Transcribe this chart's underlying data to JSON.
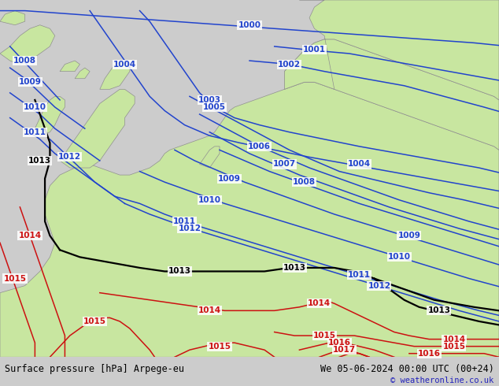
{
  "title_left": "Surface pressure [hPa] Arpege-eu",
  "title_right": "We 05-06-2024 00:00 UTC (00+24)",
  "credit": "© weatheronline.co.uk",
  "sea_color": "#d8d8d8",
  "land_color": "#c8e6a0",
  "coast_color": "#909090",
  "blue_color": "#2244cc",
  "black_color": "#000000",
  "red_color": "#cc1111",
  "lw_blue": 1.1,
  "lw_black": 1.6,
  "lw_red": 1.1,
  "label_fs": 7.5,
  "footer_fs": 8.5,
  "credit_fs": 7.5,
  "figsize": [
    6.34,
    4.9
  ],
  "dpi": 100
}
